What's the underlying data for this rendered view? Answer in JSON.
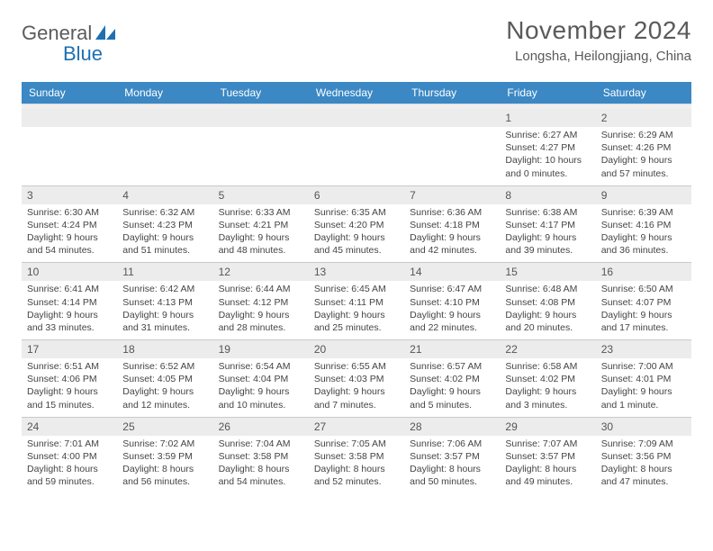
{
  "logo": {
    "text1": "General",
    "text2": "Blue"
  },
  "colors": {
    "header_bar": "#3b88c4",
    "header_text": "#ffffff",
    "daynum_bg": "#ececec",
    "daynum_text": "#555555",
    "body_text": "#444444",
    "title_text": "#5a5a5a",
    "logo_gray": "#5b5b5b",
    "logo_blue": "#1f6fb2",
    "divider": "#c9c9c9",
    "spacer_bg": "#f0f0f0"
  },
  "month_title": "November 2024",
  "location": "Longsha, Heilongjiang, China",
  "day_headers": [
    "Sunday",
    "Monday",
    "Tuesday",
    "Wednesday",
    "Thursday",
    "Friday",
    "Saturday"
  ],
  "weeks": [
    [
      {
        "num": "",
        "sunrise": "",
        "sunset": "",
        "daylight": ""
      },
      {
        "num": "",
        "sunrise": "",
        "sunset": "",
        "daylight": ""
      },
      {
        "num": "",
        "sunrise": "",
        "sunset": "",
        "daylight": ""
      },
      {
        "num": "",
        "sunrise": "",
        "sunset": "",
        "daylight": ""
      },
      {
        "num": "",
        "sunrise": "",
        "sunset": "",
        "daylight": ""
      },
      {
        "num": "1",
        "sunrise": "Sunrise: 6:27 AM",
        "sunset": "Sunset: 4:27 PM",
        "daylight": "Daylight: 10 hours and 0 minutes."
      },
      {
        "num": "2",
        "sunrise": "Sunrise: 6:29 AM",
        "sunset": "Sunset: 4:26 PM",
        "daylight": "Daylight: 9 hours and 57 minutes."
      }
    ],
    [
      {
        "num": "3",
        "sunrise": "Sunrise: 6:30 AM",
        "sunset": "Sunset: 4:24 PM",
        "daylight": "Daylight: 9 hours and 54 minutes."
      },
      {
        "num": "4",
        "sunrise": "Sunrise: 6:32 AM",
        "sunset": "Sunset: 4:23 PM",
        "daylight": "Daylight: 9 hours and 51 minutes."
      },
      {
        "num": "5",
        "sunrise": "Sunrise: 6:33 AM",
        "sunset": "Sunset: 4:21 PM",
        "daylight": "Daylight: 9 hours and 48 minutes."
      },
      {
        "num": "6",
        "sunrise": "Sunrise: 6:35 AM",
        "sunset": "Sunset: 4:20 PM",
        "daylight": "Daylight: 9 hours and 45 minutes."
      },
      {
        "num": "7",
        "sunrise": "Sunrise: 6:36 AM",
        "sunset": "Sunset: 4:18 PM",
        "daylight": "Daylight: 9 hours and 42 minutes."
      },
      {
        "num": "8",
        "sunrise": "Sunrise: 6:38 AM",
        "sunset": "Sunset: 4:17 PM",
        "daylight": "Daylight: 9 hours and 39 minutes."
      },
      {
        "num": "9",
        "sunrise": "Sunrise: 6:39 AM",
        "sunset": "Sunset: 4:16 PM",
        "daylight": "Daylight: 9 hours and 36 minutes."
      }
    ],
    [
      {
        "num": "10",
        "sunrise": "Sunrise: 6:41 AM",
        "sunset": "Sunset: 4:14 PM",
        "daylight": "Daylight: 9 hours and 33 minutes."
      },
      {
        "num": "11",
        "sunrise": "Sunrise: 6:42 AM",
        "sunset": "Sunset: 4:13 PM",
        "daylight": "Daylight: 9 hours and 31 minutes."
      },
      {
        "num": "12",
        "sunrise": "Sunrise: 6:44 AM",
        "sunset": "Sunset: 4:12 PM",
        "daylight": "Daylight: 9 hours and 28 minutes."
      },
      {
        "num": "13",
        "sunrise": "Sunrise: 6:45 AM",
        "sunset": "Sunset: 4:11 PM",
        "daylight": "Daylight: 9 hours and 25 minutes."
      },
      {
        "num": "14",
        "sunrise": "Sunrise: 6:47 AM",
        "sunset": "Sunset: 4:10 PM",
        "daylight": "Daylight: 9 hours and 22 minutes."
      },
      {
        "num": "15",
        "sunrise": "Sunrise: 6:48 AM",
        "sunset": "Sunset: 4:08 PM",
        "daylight": "Daylight: 9 hours and 20 minutes."
      },
      {
        "num": "16",
        "sunrise": "Sunrise: 6:50 AM",
        "sunset": "Sunset: 4:07 PM",
        "daylight": "Daylight: 9 hours and 17 minutes."
      }
    ],
    [
      {
        "num": "17",
        "sunrise": "Sunrise: 6:51 AM",
        "sunset": "Sunset: 4:06 PM",
        "daylight": "Daylight: 9 hours and 15 minutes."
      },
      {
        "num": "18",
        "sunrise": "Sunrise: 6:52 AM",
        "sunset": "Sunset: 4:05 PM",
        "daylight": "Daylight: 9 hours and 12 minutes."
      },
      {
        "num": "19",
        "sunrise": "Sunrise: 6:54 AM",
        "sunset": "Sunset: 4:04 PM",
        "daylight": "Daylight: 9 hours and 10 minutes."
      },
      {
        "num": "20",
        "sunrise": "Sunrise: 6:55 AM",
        "sunset": "Sunset: 4:03 PM",
        "daylight": "Daylight: 9 hours and 7 minutes."
      },
      {
        "num": "21",
        "sunrise": "Sunrise: 6:57 AM",
        "sunset": "Sunset: 4:02 PM",
        "daylight": "Daylight: 9 hours and 5 minutes."
      },
      {
        "num": "22",
        "sunrise": "Sunrise: 6:58 AM",
        "sunset": "Sunset: 4:02 PM",
        "daylight": "Daylight: 9 hours and 3 minutes."
      },
      {
        "num": "23",
        "sunrise": "Sunrise: 7:00 AM",
        "sunset": "Sunset: 4:01 PM",
        "daylight": "Daylight: 9 hours and 1 minute."
      }
    ],
    [
      {
        "num": "24",
        "sunrise": "Sunrise: 7:01 AM",
        "sunset": "Sunset: 4:00 PM",
        "daylight": "Daylight: 8 hours and 59 minutes."
      },
      {
        "num": "25",
        "sunrise": "Sunrise: 7:02 AM",
        "sunset": "Sunset: 3:59 PM",
        "daylight": "Daylight: 8 hours and 56 minutes."
      },
      {
        "num": "26",
        "sunrise": "Sunrise: 7:04 AM",
        "sunset": "Sunset: 3:58 PM",
        "daylight": "Daylight: 8 hours and 54 minutes."
      },
      {
        "num": "27",
        "sunrise": "Sunrise: 7:05 AM",
        "sunset": "Sunset: 3:58 PM",
        "daylight": "Daylight: 8 hours and 52 minutes."
      },
      {
        "num": "28",
        "sunrise": "Sunrise: 7:06 AM",
        "sunset": "Sunset: 3:57 PM",
        "daylight": "Daylight: 8 hours and 50 minutes."
      },
      {
        "num": "29",
        "sunrise": "Sunrise: 7:07 AM",
        "sunset": "Sunset: 3:57 PM",
        "daylight": "Daylight: 8 hours and 49 minutes."
      },
      {
        "num": "30",
        "sunrise": "Sunrise: 7:09 AM",
        "sunset": "Sunset: 3:56 PM",
        "daylight": "Daylight: 8 hours and 47 minutes."
      }
    ]
  ]
}
